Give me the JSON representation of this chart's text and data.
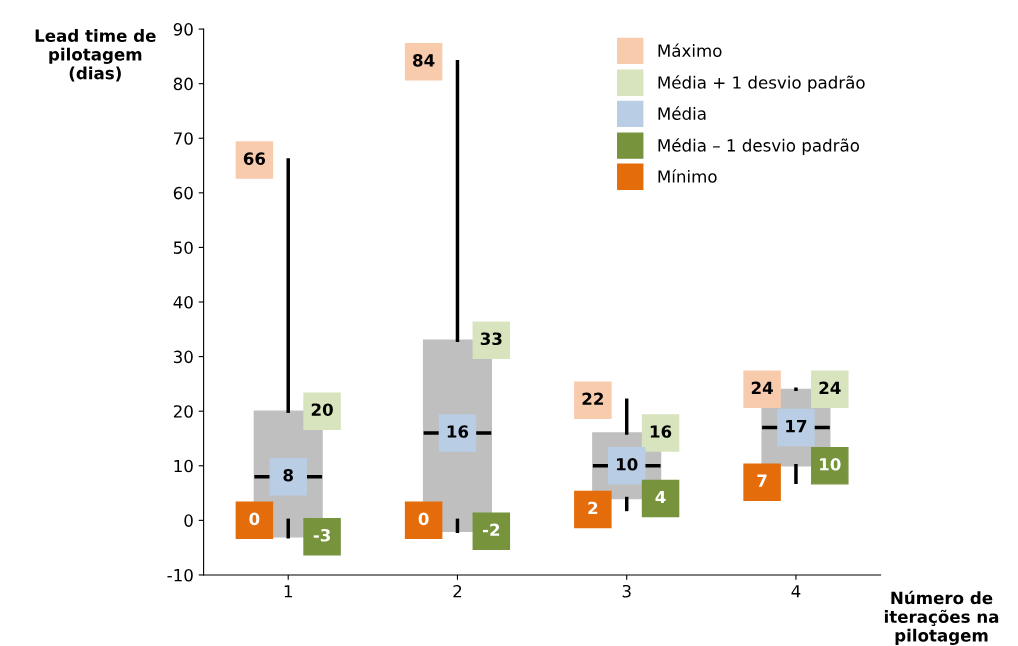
{
  "chart_data": {
    "type": "box",
    "categories": [
      "1",
      "2",
      "3",
      "4"
    ],
    "boxes": [
      {
        "low": 0,
        "q1": -3,
        "median": 8,
        "q3": 20,
        "high": 66
      },
      {
        "low": 0,
        "q1": -2,
        "median": 16,
        "q3": 33,
        "high": 84
      },
      {
        "low": 2,
        "q1": 4,
        "median": 10,
        "q3": 16,
        "high": 22
      },
      {
        "low": 7,
        "q1": 10,
        "median": 17,
        "q3": 24,
        "high": 24
      }
    ],
    "color": "#bfbfbf",
    "series": [
      {
        "name": "Máximo",
        "color": "#f9cbad",
        "type": "scatter",
        "values": [
          66,
          84,
          22,
          24
        ]
      },
      {
        "name": "Média + 1 desvio padrão",
        "color": "#d7e4bd",
        "type": "scatter",
        "values": [
          20,
          33,
          16,
          24
        ]
      },
      {
        "name": "Média",
        "color": "#b9cde5",
        "type": "scatter",
        "values": [
          8,
          16,
          10,
          17
        ]
      },
      {
        "name": "Média – 1 desvio padrão",
        "color": "#77933c",
        "type": "scatter",
        "values": [
          -3,
          -2,
          4,
          10
        ]
      },
      {
        "name": "Mínimo",
        "color": "#e46c0a",
        "type": "scatter",
        "values": [
          0,
          0,
          2,
          7
        ]
      }
    ],
    "marker": "square",
    "data_labels": true,
    "ylim": [
      -10,
      90
    ],
    "yticks": [
      -10,
      0,
      10,
      20,
      30,
      40,
      50,
      60,
      70,
      80,
      90
    ],
    "ylabel": "Lead time de\npilotagem\n(dias)",
    "xlabel": "Número de\niterações na\npilotagem",
    "legend": "top right",
    "grid": false
  }
}
